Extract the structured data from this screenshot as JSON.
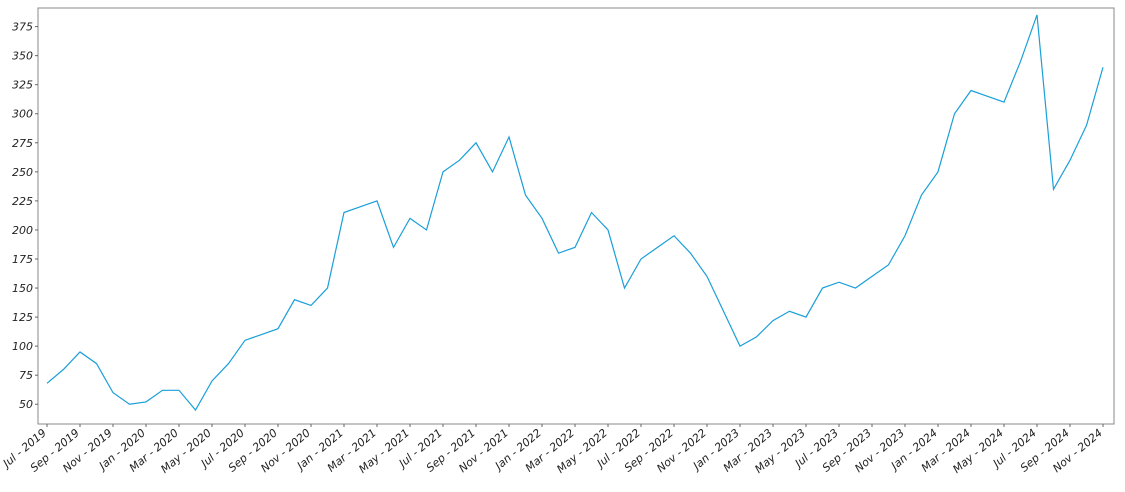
{
  "chart_data": {
    "type": "line",
    "categories": [
      "Jul - 2019",
      null,
      "Sep - 2019",
      null,
      "Nov - 2019",
      null,
      "Jan - 2020",
      null,
      "Mar - 2020",
      null,
      "May - 2020",
      null,
      "Jul - 2020",
      null,
      "Sep - 2020",
      null,
      "Nov - 2020",
      null,
      "Jan - 2021",
      null,
      "Mar - 2021",
      null,
      "May - 2021",
      null,
      "Jul - 2021",
      null,
      "Sep - 2021",
      null,
      "Nov - 2021",
      null,
      "Jan - 2022",
      null,
      "Mar - 2022",
      null,
      "May - 2022",
      null,
      "Jul - 2022",
      null,
      "Sep - 2022",
      null,
      "Nov - 2022",
      null,
      "Jan - 2023",
      null,
      "Mar - 2023",
      null,
      "May - 2023",
      null,
      "Jul - 2023",
      null,
      "Sep - 2023",
      null,
      "Nov - 2023",
      null,
      "Jan - 2024",
      null,
      "Mar - 2024",
      null,
      "May - 2024",
      null,
      "Jul - 2024",
      null,
      "Sep - 2024",
      null,
      "Nov - 2024"
    ],
    "values": [
      68,
      80,
      95,
      85,
      60,
      50,
      52,
      62,
      62,
      45,
      70,
      85,
      105,
      110,
      115,
      140,
      135,
      150,
      215,
      220,
      225,
      185,
      210,
      200,
      250,
      260,
      275,
      250,
      280,
      230,
      210,
      180,
      185,
      215,
      200,
      150,
      175,
      185,
      195,
      180,
      160,
      130,
      100,
      108,
      122,
      130,
      125,
      150,
      155,
      150,
      160,
      170,
      195,
      230,
      250,
      300,
      320,
      315,
      310,
      345,
      385,
      235,
      260,
      290,
      340
    ],
    "color": "#1a9fd9",
    "ylim": [
      33,
      391
    ],
    "yticks": [
      50,
      75,
      100,
      125,
      150,
      175,
      200,
      225,
      250,
      275,
      300,
      325,
      350,
      375
    ]
  }
}
